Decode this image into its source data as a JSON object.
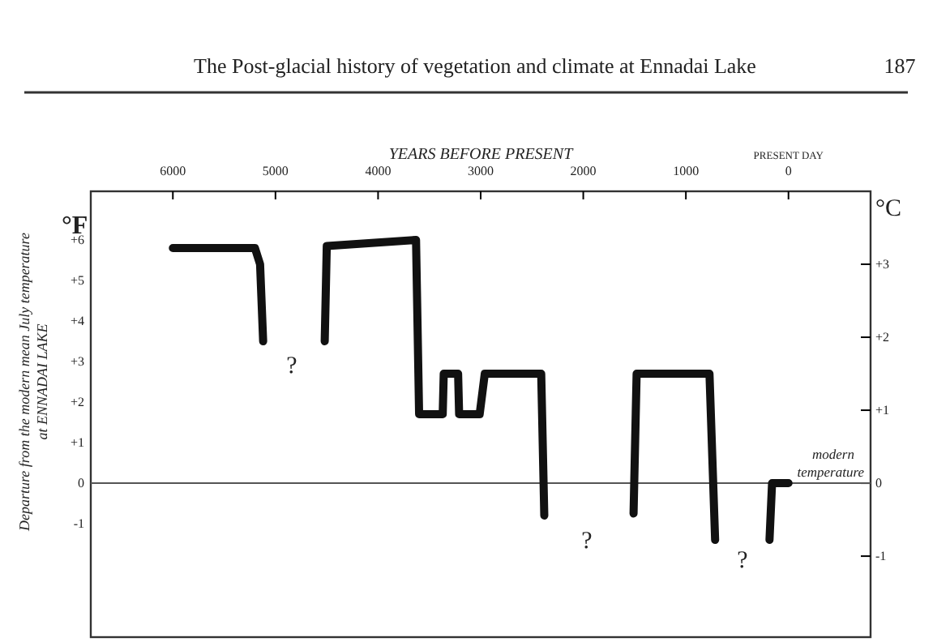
{
  "chart_data": {
    "type": "line",
    "title": "The Post-glacial history of vegetation and climate at Ennadai Lake",
    "xlabel": "YEARS BEFORE PRESENT",
    "ylabel": "Departure from the modern mean July temperature\nat ENNADAI LAKE",
    "y2label": "°C",
    "xlim": [
      6800,
      -800
    ],
    "xticks": [
      6000,
      5000,
      4000,
      3000,
      2000,
      1000,
      0
    ],
    "ylim": [
      -3.8,
      7.2
    ],
    "yticks": [
      {
        "value": 6,
        "label": "+6"
      },
      {
        "value": 5,
        "label": "+5"
      },
      {
        "value": 4,
        "label": "+4"
      },
      {
        "value": 3,
        "label": "+3"
      },
      {
        "value": 2,
        "label": "+2"
      },
      {
        "value": 1,
        "label": "+1"
      },
      0,
      -1
    ],
    "y2lim": [
      -2.11,
      4.0
    ],
    "y2ticks": [
      {
        "value": 3,
        "label": "+3"
      },
      {
        "value": 2,
        "label": "+2"
      },
      {
        "value": 1,
        "label": "+1"
      },
      0,
      -1
    ],
    "grid": false,
    "line_style": "solid",
    "marker": "none",
    "ref_lines": [
      {
        "axis": "y",
        "value": 0,
        "label": "modern temperature",
        "color": "#555555"
      }
    ],
    "series": [
      {
        "color": "#111111",
        "x": [
          6000,
          5200,
          5150,
          5120
        ],
        "values": [
          5.8,
          5.8,
          5.4,
          3.5
        ]
      },
      {
        "color": "#111111",
        "x": [
          4520,
          4500,
          3630,
          3600,
          3370,
          3360,
          3220,
          3210,
          3010,
          2960,
          2410,
          2380
        ],
        "values": [
          3.5,
          5.85,
          6.0,
          1.7,
          1.7,
          2.7,
          2.7,
          1.7,
          1.7,
          2.7,
          2.7,
          -0.8
        ]
      },
      {
        "color": "#111111",
        "x": [
          1510,
          1480,
          770,
          715
        ],
        "values": [
          -0.75,
          2.7,
          2.7,
          -1.4
        ]
      },
      {
        "color": "#111111",
        "x": [
          185,
          160,
          0
        ],
        "values": [
          -1.4,
          0,
          0
        ]
      }
    ],
    "annotations": [
      "187",
      "°F",
      "PRESENT DAY",
      "?",
      "?",
      "?"
    ]
  }
}
